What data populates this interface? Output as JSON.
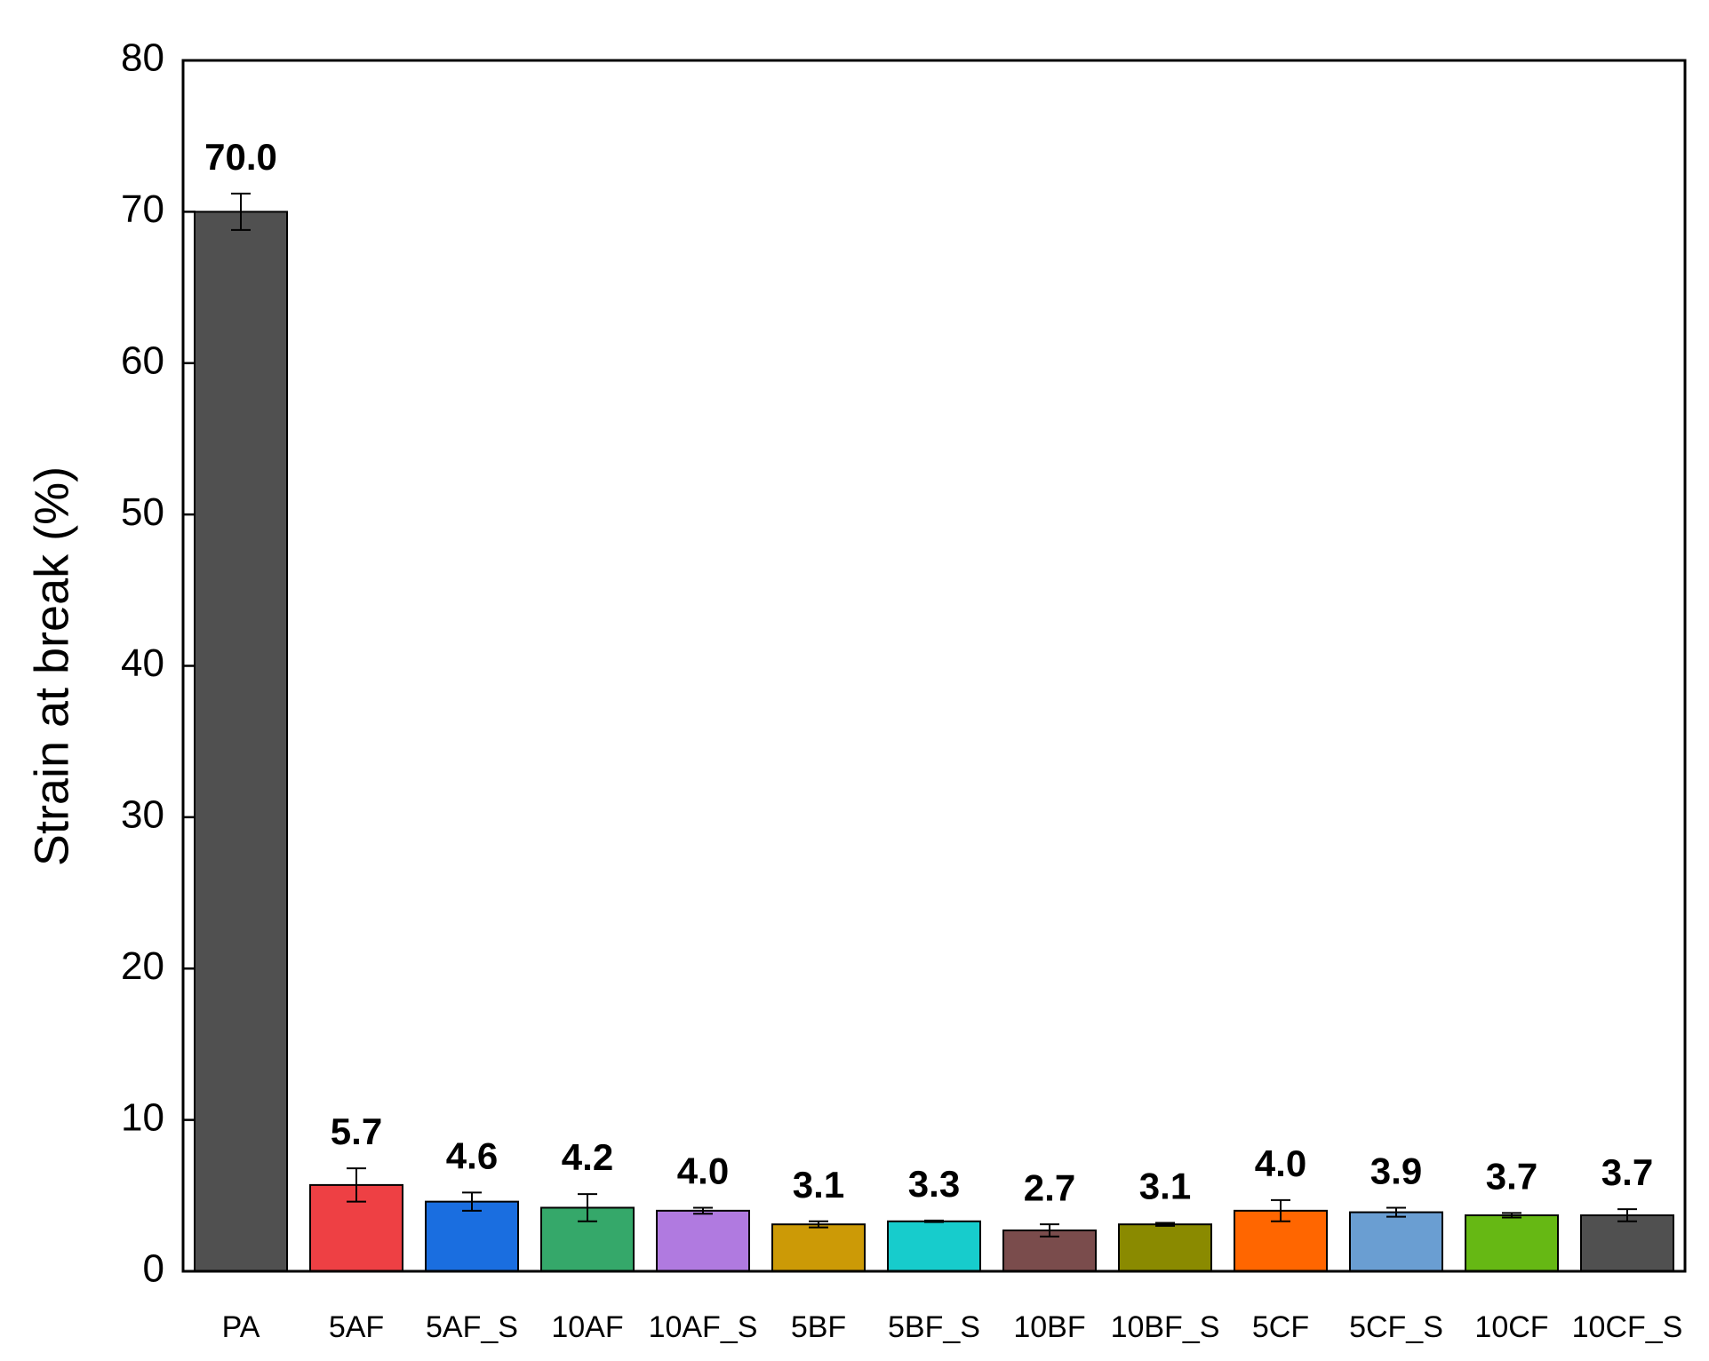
{
  "chart_data": {
    "type": "bar",
    "y_label": "Strain at break (%)",
    "categories": [
      "PA",
      "5AF",
      "5AF_S",
      "10AF",
      "10AF_S",
      "5BF",
      "5BF_S",
      "10BF",
      "10BF_S",
      "5CF",
      "5CF_S",
      "10CF",
      "10CF_S"
    ],
    "values": [
      70.0,
      5.7,
      4.6,
      4.2,
      4.0,
      3.1,
      3.3,
      2.7,
      3.1,
      4.0,
      3.9,
      3.7,
      3.7
    ],
    "value_labels": [
      "70.0",
      "5.7",
      "4.6",
      "4.2",
      "4.0",
      "3.1",
      "3.3",
      "2.7",
      "3.1",
      "4.0",
      "3.9",
      "3.7",
      "3.7"
    ],
    "errors": [
      1.2,
      1.1,
      0.6,
      0.9,
      0.2,
      0.2,
      0.05,
      0.4,
      0.1,
      0.7,
      0.3,
      0.15,
      0.4
    ],
    "colors": [
      "#505050",
      "#ee4044",
      "#1a6ee0",
      "#35a86a",
      "#b07ae0",
      "#cc9a06",
      "#17cccc",
      "#7a4c4c",
      "#8a8a00",
      "#ff6600",
      "#6a9ed2",
      "#66b814",
      "#505050"
    ],
    "ylim": [
      0,
      80
    ],
    "yticks": [
      0,
      10,
      20,
      30,
      40,
      50,
      60,
      70,
      80
    ]
  }
}
